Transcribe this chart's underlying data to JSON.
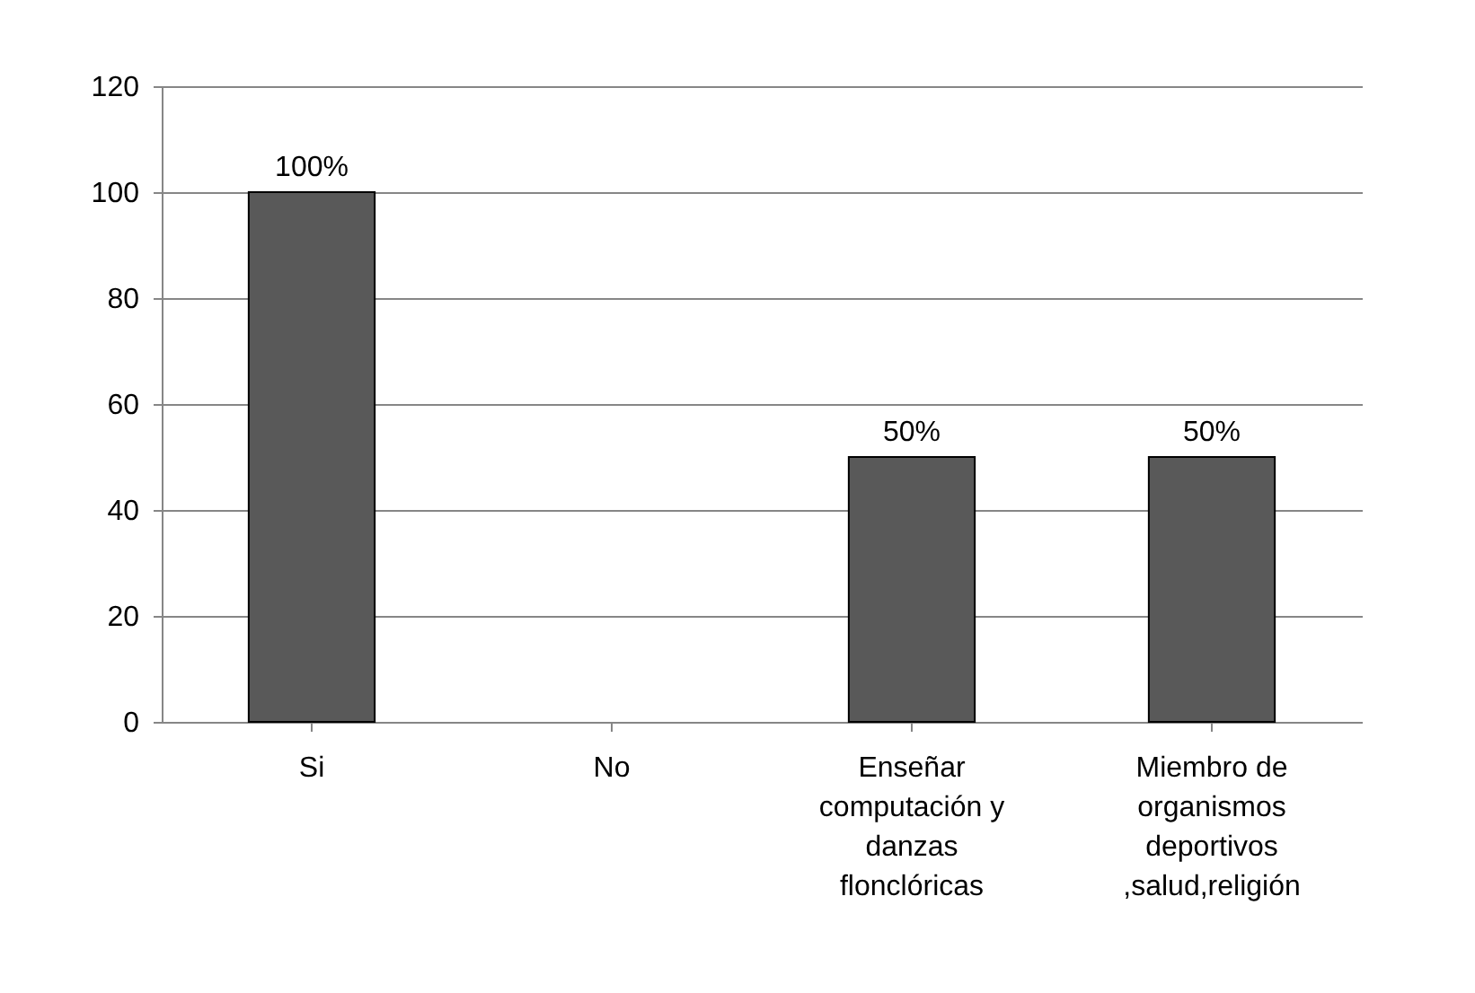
{
  "chart_data": {
    "type": "bar",
    "categories": [
      "Si",
      "No",
      "Enseñar computación y danzas flonclóricas",
      "Miembro de organismos deportivos ,salud,religión"
    ],
    "values": [
      100,
      null,
      50,
      50
    ],
    "value_labels": [
      "100%",
      null,
      "50%",
      "50%"
    ],
    "color": "#595959",
    "ylim": [
      0,
      120
    ],
    "yticks": [
      0,
      20,
      40,
      60,
      80,
      100,
      120
    ],
    "grid": "y"
  }
}
